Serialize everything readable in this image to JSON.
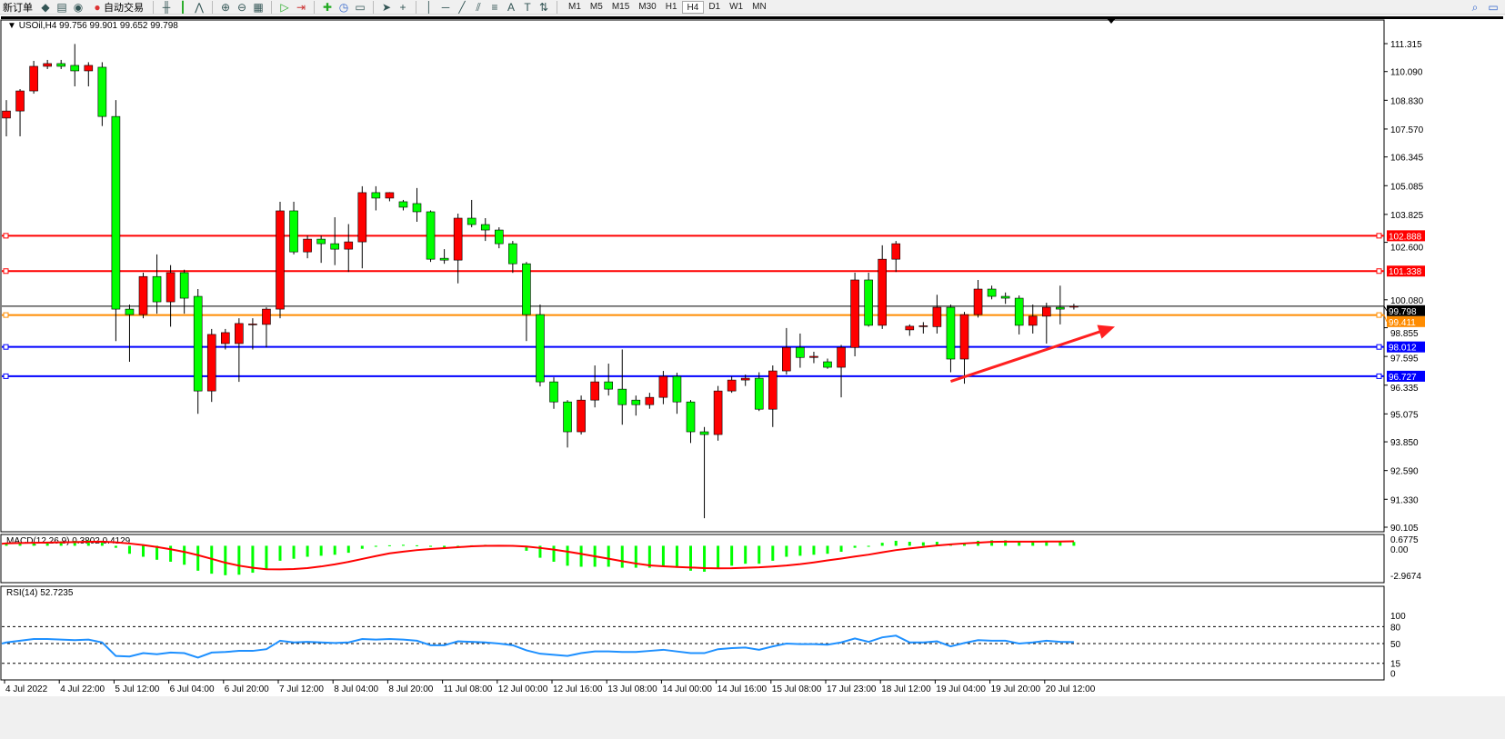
{
  "toolbar": {
    "new_order": "新订单",
    "auto_trading": "自动交易",
    "icons": [
      "new-order-icon",
      "market-watch-icon",
      "navigator-icon",
      "signal-icon",
      "auto-trading-icon",
      "bar-chart-icon",
      "candlestick-icon",
      "line-chart-icon",
      "zoom-in-icon",
      "zoom-out-icon",
      "tile-icon",
      "scroll-icon",
      "shift-icon",
      "indicators-icon",
      "periods-icon",
      "templates-icon",
      "cursor-icon",
      "crosshair-icon",
      "vertical-line-icon",
      "horizontal-line-icon",
      "trendline-icon",
      "channel-icon",
      "fibonacci-icon",
      "text-icon",
      "label-icon",
      "arrows-icon"
    ],
    "timeframes": [
      "M1",
      "M5",
      "M15",
      "M30",
      "H1",
      "H4",
      "D1",
      "W1",
      "MN"
    ],
    "active_timeframe": "H4"
  },
  "header": {
    "symbol": "USOil,H4",
    "ohlc": "99.756 99.901 99.652 99.798"
  },
  "chart_data": {
    "type": "candlestick",
    "symbol": "USOil",
    "timeframe": "H4",
    "colors": {
      "bull": "#ff0000",
      "bear": "#00ff00",
      "wick": "#000000"
    },
    "ylim": [
      90.105,
      111.315
    ],
    "y_ticks": [
      "111.315",
      "110.090",
      "108.830",
      "107.570",
      "106.345",
      "105.085",
      "103.825",
      "102.600",
      "100.080",
      "98.855",
      "97.595",
      "96.335",
      "95.075",
      "93.850",
      "92.590",
      "91.330",
      "90.105"
    ],
    "x_ticks": [
      "4 Jul 2022",
      "4 Jul 22:00",
      "5 Jul 12:00",
      "6 Jul 04:00",
      "6 Jul 20:00",
      "7 Jul 12:00",
      "8 Jul 04:00",
      "8 Jul 20:00",
      "11 Jul 08:00",
      "12 Jul 00:00",
      "12 Jul 16:00",
      "13 Jul 08:00",
      "14 Jul 00:00",
      "14 Jul 16:00",
      "15 Jul 08:00",
      "17 Jul 23:00",
      "18 Jul 12:00",
      "19 Jul 04:00",
      "19 Jul 20:00",
      "20 Jul 12:00"
    ],
    "ohlc": [
      [
        108.05,
        108.84,
        107.25,
        108.36
      ],
      [
        108.36,
        109.32,
        107.25,
        109.24
      ],
      [
        109.24,
        110.56,
        109.12,
        110.32
      ],
      [
        110.32,
        110.6,
        110.2,
        110.44
      ],
      [
        110.44,
        110.6,
        110.2,
        110.32
      ],
      [
        110.36,
        111.3,
        109.44,
        110.12
      ],
      [
        110.12,
        110.5,
        109.44,
        110.36
      ],
      [
        110.28,
        110.5,
        107.7,
        108.12
      ],
      [
        108.12,
        108.84,
        98.27,
        99.67
      ],
      [
        99.67,
        99.87,
        97.36,
        99.43
      ],
      [
        99.43,
        101.27,
        99.27,
        101.1
      ],
      [
        101.1,
        102.07,
        99.47,
        99.99
      ],
      [
        99.99,
        101.6,
        98.9,
        101.27
      ],
      [
        101.27,
        101.4,
        99.47,
        100.15
      ],
      [
        100.23,
        100.55,
        95.08,
        96.08
      ],
      [
        96.08,
        98.8,
        95.6,
        98.56
      ],
      [
        98.16,
        98.8,
        97.9,
        98.64
      ],
      [
        98.16,
        99.27,
        96.48,
        99.04
      ],
      [
        98.99,
        99.27,
        97.9,
        99.02
      ],
      [
        99.0,
        99.75,
        97.99,
        99.67
      ],
      [
        99.67,
        104.38,
        99.27,
        103.98
      ],
      [
        103.98,
        104.38,
        102.07,
        102.18
      ],
      [
        102.18,
        102.9,
        101.9,
        102.74
      ],
      [
        102.74,
        102.9,
        101.7,
        102.54
      ],
      [
        102.54,
        103.7,
        101.6,
        102.3
      ],
      [
        102.3,
        103.4,
        101.3,
        102.62
      ],
      [
        102.62,
        105.06,
        101.46,
        104.78
      ],
      [
        104.78,
        105.06,
        104.0,
        104.54
      ],
      [
        104.54,
        104.8,
        104.4,
        104.78
      ],
      [
        104.38,
        104.46,
        104.0,
        104.14
      ],
      [
        104.3,
        104.98,
        103.5,
        103.94
      ],
      [
        103.94,
        104.0,
        101.74,
        101.86
      ],
      [
        101.9,
        102.3,
        101.66,
        101.82
      ],
      [
        101.82,
        103.86,
        100.8,
        103.66
      ],
      [
        103.66,
        104.46,
        103.26,
        103.38
      ],
      [
        103.38,
        103.66,
        102.66,
        103.14
      ],
      [
        103.14,
        103.26,
        102.34,
        102.54
      ],
      [
        102.54,
        102.66,
        101.26,
        101.66
      ],
      [
        101.66,
        101.74,
        98.27,
        99.43
      ],
      [
        99.43,
        99.87,
        96.28,
        96.48
      ],
      [
        96.48,
        96.68,
        95.3,
        95.6
      ],
      [
        95.6,
        95.68,
        93.6,
        94.29
      ],
      [
        94.29,
        95.88,
        94.17,
        95.68
      ],
      [
        95.68,
        97.2,
        95.36,
        96.48
      ],
      [
        96.48,
        97.28,
        95.88,
        96.16
      ],
      [
        96.16,
        97.9,
        94.6,
        95.48
      ],
      [
        95.68,
        95.88,
        95.0,
        95.48
      ],
      [
        95.48,
        96.0,
        95.3,
        95.8
      ],
      [
        95.8,
        96.96,
        95.5,
        96.72
      ],
      [
        96.72,
        96.88,
        95.08,
        95.6
      ],
      [
        95.6,
        95.68,
        93.8,
        94.29
      ],
      [
        94.29,
        94.5,
        90.5,
        94.17
      ],
      [
        94.17,
        96.3,
        93.9,
        96.08
      ],
      [
        96.08,
        96.72,
        96.0,
        96.56
      ],
      [
        96.56,
        96.8,
        96.3,
        96.64
      ],
      [
        96.64,
        96.9,
        95.2,
        95.28
      ],
      [
        95.28,
        97.2,
        94.5,
        96.96
      ],
      [
        96.96,
        98.84,
        96.8,
        97.99
      ],
      [
        97.99,
        98.6,
        97.1,
        97.55
      ],
      [
        97.55,
        97.8,
        97.3,
        97.6
      ],
      [
        97.36,
        97.5,
        97.05,
        97.12
      ],
      [
        97.12,
        98.1,
        95.8,
        97.99
      ],
      [
        97.99,
        101.27,
        97.6,
        100.95
      ],
      [
        100.95,
        101.27,
        98.9,
        98.96
      ],
      [
        98.96,
        102.47,
        98.8,
        101.86
      ],
      [
        101.86,
        102.66,
        101.3,
        102.54
      ],
      [
        98.76,
        99.0,
        98.5,
        98.92
      ],
      [
        98.9,
        99.1,
        98.6,
        98.94
      ],
      [
        98.9,
        100.3,
        98.6,
        99.75
      ],
      [
        99.75,
        99.87,
        96.9,
        97.48
      ],
      [
        97.48,
        99.55,
        96.4,
        99.43
      ],
      [
        99.43,
        100.95,
        99.3,
        100.55
      ],
      [
        100.55,
        100.7,
        100.1,
        100.23
      ],
      [
        100.23,
        100.4,
        99.9,
        100.15
      ],
      [
        100.15,
        100.27,
        98.56,
        98.96
      ],
      [
        98.96,
        99.87,
        98.6,
        99.36
      ],
      [
        99.36,
        99.95,
        98.16,
        99.75
      ],
      [
        99.75,
        100.7,
        99.0,
        99.67
      ],
      [
        99.756,
        99.901,
        99.652,
        99.798
      ]
    ],
    "levels": [
      {
        "price": 102.888,
        "label": "102.888",
        "color": "#ff0000"
      },
      {
        "price": 101.338,
        "label": "101.338",
        "color": "#ff0000"
      },
      {
        "price": 99.798,
        "label": "99.798",
        "color": "#000000",
        "bid": true
      },
      {
        "price": 99.411,
        "label": "99.411",
        "color": "#ff8c00"
      },
      {
        "price": 98.012,
        "label": "98.012",
        "color": "#0000ff"
      },
      {
        "price": 96.727,
        "label": "96.727",
        "color": "#0000ff"
      }
    ],
    "arrow": {
      "color": "#ff2020",
      "from": {
        "candle": 69,
        "price": 96.5
      },
      "to": {
        "candle": 81,
        "price": 98.9
      }
    },
    "macd": {
      "label": "MACD(12,26,9) 0.3802 0.4129",
      "ylim": [
        -2.9674,
        0.6775
      ],
      "ticks": [
        "0.6775",
        "0.00",
        "-2.9674"
      ],
      "hist_color": "#00ff00",
      "signal_color": "#ff0000",
      "histogram": [
        0.25,
        0.3,
        0.35,
        0.4,
        0.45,
        0.5,
        0.55,
        0.5,
        -0.2,
        -0.8,
        -1.1,
        -1.4,
        -1.6,
        -1.9,
        -2.5,
        -2.8,
        -2.95,
        -2.9,
        -2.7,
        -2.4,
        -1.5,
        -1.3,
        -1.1,
        -1.0,
        -0.9,
        -0.7,
        -0.3,
        -0.1,
        0.05,
        0.1,
        0.05,
        -0.1,
        -0.2,
        -0.05,
        0.05,
        0.1,
        0.05,
        -0.1,
        -0.5,
        -1.2,
        -1.6,
        -2.0,
        -2.1,
        -2.1,
        -2.1,
        -2.2,
        -2.2,
        -2.2,
        -2.0,
        -2.2,
        -2.5,
        -2.6,
        -2.3,
        -2.0,
        -1.8,
        -1.8,
        -1.5,
        -1.1,
        -1.0,
        -0.9,
        -0.8,
        -0.6,
        -0.2,
        -0.1,
        0.3,
        0.5,
        0.4,
        0.35,
        0.4,
        0.2,
        0.3,
        0.5,
        0.55,
        0.55,
        0.45,
        0.4,
        0.45,
        0.42,
        0.38
      ]
    },
    "rsi": {
      "label": "RSI(14) 52.7235",
      "ylim": [
        0,
        100
      ],
      "ticks": [
        "100",
        "80",
        "50",
        "15",
        "0"
      ],
      "levels": [
        80,
        50,
        15
      ],
      "color": "#1e90ff",
      "values": [
        52,
        55,
        58,
        58,
        57,
        56,
        57,
        52,
        28,
        27,
        33,
        31,
        34,
        33,
        25,
        34,
        35,
        37,
        37,
        40,
        55,
        52,
        53,
        52,
        51,
        52,
        58,
        57,
        58,
        57,
        55,
        47,
        47,
        54,
        53,
        52,
        50,
        47,
        38,
        32,
        30,
        28,
        33,
        36,
        36,
        35,
        35,
        37,
        39,
        36,
        33,
        33,
        40,
        42,
        43,
        39,
        45,
        50,
        49,
        49,
        48,
        52,
        59,
        53,
        61,
        64,
        52,
        52,
        54,
        45,
        51,
        56,
        55,
        55,
        50,
        52,
        55,
        53,
        52.7
      ]
    }
  }
}
